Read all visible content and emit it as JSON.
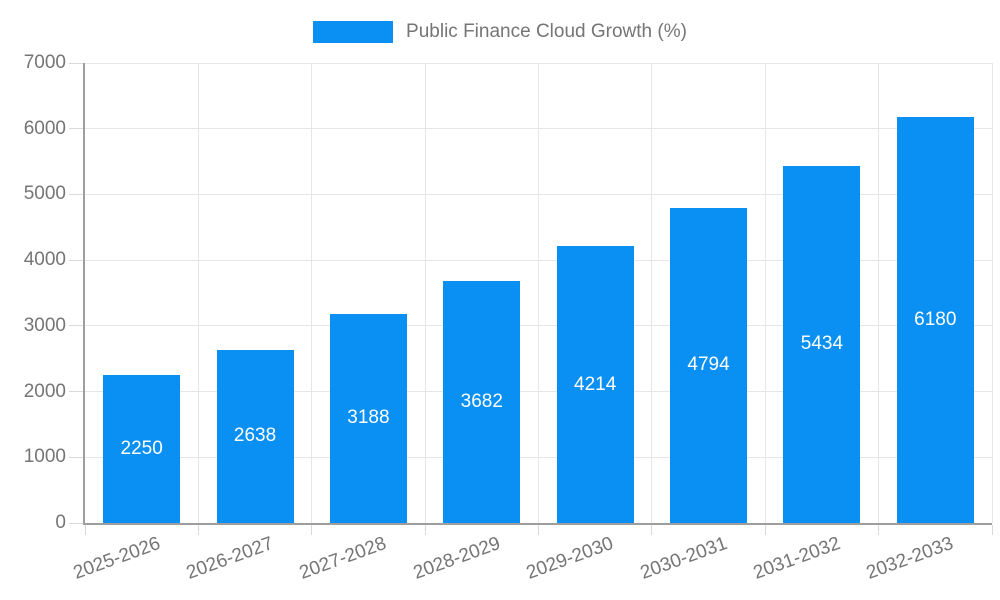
{
  "chart_data": {
    "type": "bar",
    "legend": "Public Finance Cloud Growth (%)",
    "legend_position": "top",
    "categories": [
      "2025-2026",
      "2026-2027",
      "2027-2028",
      "2028-2029",
      "2029-2030",
      "2030-2031",
      "2031-2032",
      "2032-2033"
    ],
    "values": [
      2250,
      2638,
      3188,
      3682,
      4214,
      4794,
      5434,
      6180
    ],
    "value_labels_shown": true,
    "xlabel": "",
    "ylabel": "",
    "ylim": [
      0,
      7000
    ],
    "yticks": [
      0,
      1000,
      2000,
      3000,
      4000,
      5000,
      6000,
      7000
    ],
    "grid": true,
    "bar_color": "#0a8ff2",
    "value_label_color": "#ffffff",
    "grid_color": "#e6e6e6",
    "axis_color": "#9e9e9e",
    "tick_color": "#d9d9d9",
    "text_color": "#757575"
  }
}
